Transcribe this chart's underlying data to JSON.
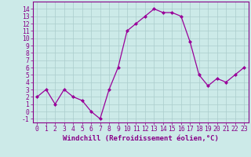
{
  "x": [
    0,
    1,
    2,
    3,
    4,
    5,
    6,
    7,
    8,
    9,
    10,
    11,
    12,
    13,
    14,
    15,
    16,
    17,
    18,
    19,
    20,
    21,
    22,
    23
  ],
  "y": [
    2,
    3,
    1,
    3,
    2,
    1.5,
    0,
    -1,
    3,
    6,
    11,
    12,
    13,
    14,
    13.5,
    13.5,
    13,
    9.5,
    5,
    3.5,
    4.5,
    4,
    5,
    6
  ],
  "line_color": "#990099",
  "marker": "D",
  "marker_size": 2.0,
  "bg_color": "#cceae8",
  "grid_color": "#aacccc",
  "xlabel": "Windchill (Refroidissement éolien,°C)",
  "xlabel_fontsize": 6.5,
  "yticks": [
    -1,
    0,
    1,
    2,
    3,
    4,
    5,
    6,
    7,
    8,
    9,
    10,
    11,
    12,
    13,
    14
  ],
  "xlim": [
    -0.5,
    23.5
  ],
  "ylim": [
    -1.5,
    15.0
  ],
  "tick_fontsize": 5.8,
  "spine_color": "#880088",
  "label_color": "#880088"
}
